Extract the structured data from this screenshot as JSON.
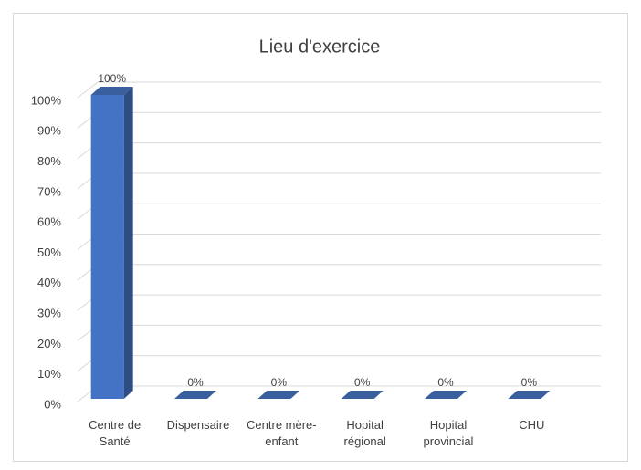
{
  "chart_data": {
    "type": "bar3d",
    "title": "Lieu d'exercice",
    "categories": [
      "Centre de Santé",
      "Dispensaire",
      "Centre mère-enfant",
      "Hopital régional",
      "Hopital provincial",
      "CHU"
    ],
    "values": [
      100,
      0,
      0,
      0,
      0,
      0
    ],
    "value_labels": [
      "100%",
      "0%",
      "0%",
      "0%",
      "0%",
      "0%"
    ],
    "color": "#4472c4",
    "ylim": [
      0,
      100
    ],
    "yticks": [
      {
        "value": 0,
        "label": "0%"
      },
      {
        "value": 10,
        "label": "10%"
      },
      {
        "value": 20,
        "label": "20%"
      },
      {
        "value": 30,
        "label": "30%"
      },
      {
        "value": 40,
        "label": "40%"
      },
      {
        "value": 50,
        "label": "50%"
      },
      {
        "value": 60,
        "label": "60%"
      },
      {
        "value": 70,
        "label": "70%"
      },
      {
        "value": 80,
        "label": "80%"
      },
      {
        "value": 90,
        "label": "90%"
      },
      {
        "value": 100,
        "label": "100%"
      }
    ],
    "grid": true
  }
}
